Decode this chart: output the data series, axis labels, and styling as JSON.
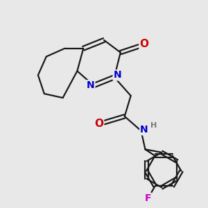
{
  "bg_color": "#e8e8e8",
  "atom_colors": {
    "C": "#1a1a1a",
    "N": "#0000cc",
    "O": "#cc0000",
    "F": "#cc00cc",
    "H": "#777777"
  },
  "bond_color": "#1a1a1a",
  "figsize": [
    3.0,
    3.0
  ],
  "dpi": 100,
  "lw": 1.6,
  "xlim": [
    0,
    10
  ],
  "ylim": [
    0,
    10
  ]
}
